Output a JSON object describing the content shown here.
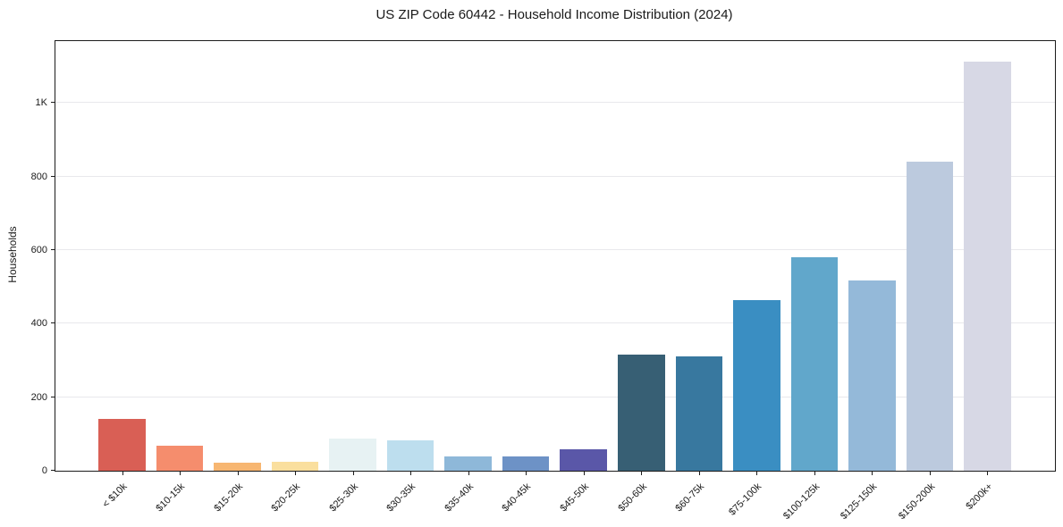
{
  "chart_data": {
    "type": "bar",
    "title": "US ZIP Code 60442 - Household Income Distribution (2024)",
    "xlabel": "",
    "ylabel": "Households",
    "categories": [
      "< $10k",
      "$10-15k",
      "$15-20k",
      "$20-25k",
      "$25-30k",
      "$30-35k",
      "$35-40k",
      "$40-45k",
      "$45-50k",
      "$50-60k",
      "$60-75k",
      "$75-100k",
      "$100-125k",
      "$125-150k",
      "$150-200k",
      "$200k+"
    ],
    "values": [
      142,
      69,
      22,
      25,
      87,
      82,
      38,
      40,
      58,
      315,
      310,
      463,
      580,
      517,
      841,
      1112
    ],
    "bar_colors": [
      "#d95f55",
      "#f58d6d",
      "#f7b671",
      "#fadf9e",
      "#e7f2f3",
      "#bddeee",
      "#8eb8d9",
      "#6d92c6",
      "#5a57a8",
      "#375f74",
      "#38789f",
      "#3a8ec2",
      "#61a7cb",
      "#94b9d9",
      "#bccade",
      "#d7d8e5"
    ],
    "y_ticks": [
      {
        "value": 0,
        "label": "0"
      },
      {
        "value": 200,
        "label": "200"
      },
      {
        "value": 400,
        "label": "400"
      },
      {
        "value": 600,
        "label": "600"
      },
      {
        "value": 800,
        "label": "800"
      },
      {
        "value": 1000,
        "label": "1K"
      }
    ],
    "ylim": [
      0,
      1168
    ],
    "grid": "horizontal",
    "legend": "none",
    "background_color": "#ffffff",
    "gridline_color": "#e8e8ec",
    "axis_color": "#1c1c1c",
    "text_color": "#1a1a1a"
  }
}
